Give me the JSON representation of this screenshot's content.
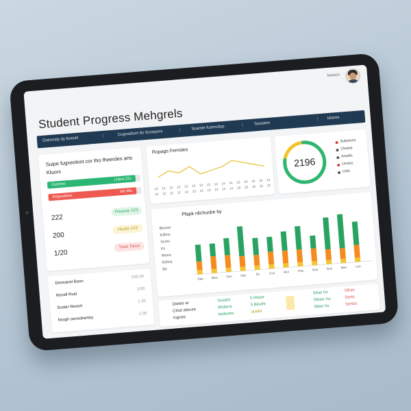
{
  "header": {
    "title": "Student Progress Mehgrels",
    "user_label": "Nwaco"
  },
  "nav": {
    "items": [
      "Ownmaly dy foreckl",
      "Cugvadiunt Its Gunsyors",
      "Soarsle fusmodup",
      "Soosiem",
      "Islares"
    ]
  },
  "left_panel": {
    "heading": "Suipe fugxeolont cor tho fheerdes arts",
    "subheading": "Kluors",
    "bars": [
      {
        "left": "Gxantos",
        "right": "Lhitns 22x",
        "color": "#2bb673",
        "fraction": 0.95
      },
      {
        "left": "Regoueluss",
        "right": "Mo Mlu",
        "color": "#ee5a52",
        "fraction": 0.95
      }
    ],
    "stats": [
      {
        "value": "222",
        "badge": "Freanas 1X3",
        "badge_bg": "#dff5e7",
        "badge_color": "#2aa362"
      },
      {
        "value": "200",
        "badge": "Hsutlo 1X3",
        "badge_bg": "#fbf4d6",
        "badge_color": "#b59a1a"
      },
      {
        "value": "1/20",
        "badge": "Twse Taroa",
        "badge_bg": "#fde4e2",
        "badge_color": "#d9544c"
      }
    ]
  },
  "bottom_left": {
    "rows": [
      {
        "label": "Dmmanel Boon",
        "value": "106.00"
      },
      {
        "label": "Rocell Rusl",
        "value": "1/00"
      },
      {
        "label": "Suster Reoort",
        "value": "1.00"
      },
      {
        "label": "Nrogh oonsoliantoy",
        "value": "1.00"
      }
    ]
  },
  "line_card": {
    "title": "Ropags Femsles",
    "x_ticks": [
      "12",
      "12",
      "12",
      "12",
      "13",
      "13",
      "13",
      "13",
      "13",
      "14",
      "14",
      "15",
      "15",
      "15",
      "15",
      "13"
    ],
    "y_values": [
      4,
      6,
      5,
      7,
      4,
      5,
      6,
      8,
      7,
      6,
      5
    ]
  },
  "gauge": {
    "value": "2196",
    "fraction": 0.78,
    "legend": [
      {
        "label": "Subetsns",
        "color": "#d63b3b"
      },
      {
        "label": "Cledoe",
        "color": "#555555"
      },
      {
        "label": "Aoutlis",
        "color": "#555555"
      },
      {
        "label": "Unsiss",
        "color": "#d63b3b"
      },
      {
        "label": "Uols",
        "color": "#555555"
      }
    ]
  },
  "bar_card": {
    "title": "Pfapk nlichusbe by",
    "y_labels": [
      "Bluose",
      "Kdlms",
      "Scres",
      "Ks",
      "Wons",
      "Kblins",
      "Bs"
    ],
    "categories": [
      "Dao",
      "Blou",
      "Oun",
      "Gac",
      "Dc",
      "Cun",
      "Rcn",
      "Pas",
      "Gne",
      "Goo",
      "Bas",
      "Los"
    ],
    "series": [
      {
        "name": "green",
        "color": "#2aa362",
        "values": [
          40,
          30,
          40,
          70,
          40,
          35,
          45,
          55,
          30,
          75,
          80,
          55
        ]
      },
      {
        "name": "orange",
        "color": "#f58a1f",
        "values": [
          20,
          30,
          30,
          25,
          25,
          30,
          30,
          30,
          30,
          25,
          25,
          30
        ]
      },
      {
        "name": "yellow",
        "color": "#f4c430",
        "values": [
          10,
          10,
          10,
          10,
          10,
          10,
          10,
          10,
          10,
          10,
          10,
          10
        ]
      }
    ]
  },
  "bottom_right": {
    "col1": [
      "Diotee ar",
      "Cihal abeure",
      "Ingnes"
    ],
    "col2": [
      "Soadot",
      "Wobers",
      "Isebutes"
    ],
    "col3": [
      "5 Hlaoe",
      "5 Bloofs",
      "aualia"
    ],
    "col4": [
      "Stlae ho",
      "Sfoloc ha",
      "Stloe ha"
    ],
    "col5": [
      "Slfuio",
      "Serto",
      "Serlos"
    ]
  }
}
